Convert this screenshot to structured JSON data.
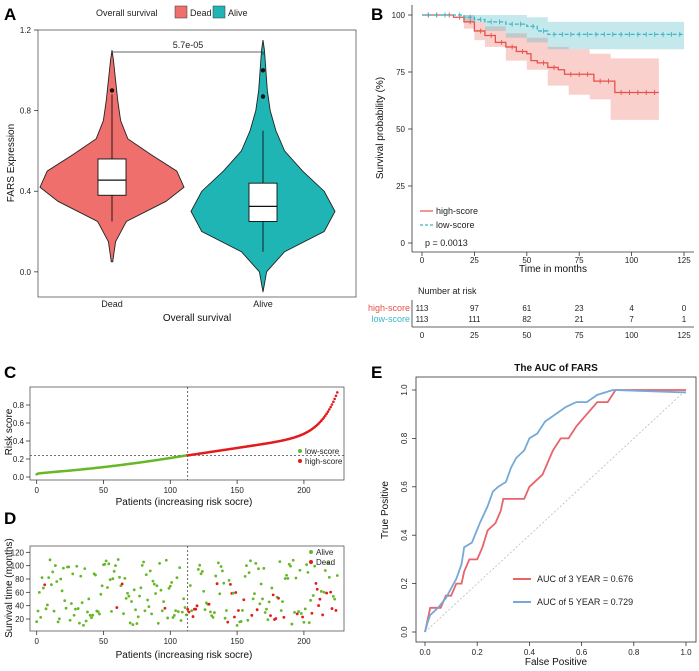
{
  "panels": {
    "A": {
      "label": "A"
    },
    "B": {
      "label": "B"
    },
    "C": {
      "label": "C"
    },
    "D": {
      "label": "D"
    },
    "E": {
      "label": "E"
    }
  },
  "colors": {
    "dead": "#ef6f6c",
    "alive": "#1fb5b5",
    "high": "#e8504a",
    "low": "#3bb6c4",
    "green": "#66b828",
    "red": "#e41a1c",
    "auc3": "#e8636a",
    "auc5": "#74a9d8"
  },
  "chart_data": [
    {
      "id": "A",
      "type": "violin",
      "title": "",
      "legend_title": "Overall survival",
      "legend": [
        "Dead",
        "Alive"
      ],
      "categories": [
        "Dead",
        "Alive"
      ],
      "xlabel": "Overall survival",
      "ylabel": "FARS Expression",
      "ylim": [
        -0.1,
        1.2
      ],
      "yticks": [
        "0.0",
        "0.4",
        "0.8",
        "1.2"
      ],
      "pvalue": "5.7e-05",
      "groups": [
        {
          "name": "Dead",
          "min": 0.05,
          "max": 1.1,
          "q1": 0.38,
          "median": 0.455,
          "q3": 0.56,
          "whisker_low": 0.25,
          "whisker_high": 0.88,
          "outliers": [
            0.9
          ],
          "density": [
            [
              0.05,
              0.01
            ],
            [
              0.15,
              0.05
            ],
            [
              0.25,
              0.2
            ],
            [
              0.35,
              0.75
            ],
            [
              0.42,
              1.0
            ],
            [
              0.5,
              0.9
            ],
            [
              0.58,
              0.55
            ],
            [
              0.66,
              0.22
            ],
            [
              0.75,
              0.12
            ],
            [
              0.85,
              0.08
            ],
            [
              0.95,
              0.05
            ],
            [
              1.05,
              0.02
            ],
            [
              1.1,
              0.0
            ]
          ]
        },
        {
          "name": "Alive",
          "min": -0.1,
          "max": 1.15,
          "q1": 0.25,
          "median": 0.325,
          "q3": 0.44,
          "whisker_low": 0.1,
          "whisker_high": 0.7,
          "outliers": [
            0.87,
            1.0
          ],
          "density": [
            [
              -0.1,
              0.0
            ],
            [
              0.0,
              0.05
            ],
            [
              0.1,
              0.3
            ],
            [
              0.2,
              0.85
            ],
            [
              0.3,
              1.0
            ],
            [
              0.4,
              0.85
            ],
            [
              0.5,
              0.55
            ],
            [
              0.6,
              0.3
            ],
            [
              0.7,
              0.18
            ],
            [
              0.8,
              0.1
            ],
            [
              0.9,
              0.06
            ],
            [
              1.0,
              0.04
            ],
            [
              1.1,
              0.02
            ],
            [
              1.15,
              0.0
            ]
          ]
        }
      ]
    },
    {
      "id": "B",
      "type": "survival",
      "xlabel": "Time in months",
      "ylabel": "Survival probability (%)",
      "xlim": [
        0,
        125
      ],
      "ylim": [
        0,
        100
      ],
      "xticks": [
        "0",
        "25",
        "50",
        "75",
        "100",
        "125"
      ],
      "yticks": [
        "0",
        "25",
        "50",
        "75",
        "100"
      ],
      "pvalue": "p = 0.0013",
      "series": [
        {
          "name": "high-score",
          "curve": [
            [
              0,
              100
            ],
            [
              10,
              100
            ],
            [
              15,
              99
            ],
            [
              20,
              97
            ],
            [
              25,
              93
            ],
            [
              30,
              91
            ],
            [
              35,
              88
            ],
            [
              40,
              86
            ],
            [
              45,
              84
            ],
            [
              50,
              83
            ],
            [
              52,
              80
            ],
            [
              55,
              79
            ],
            [
              60,
              77
            ],
            [
              65,
              76
            ],
            [
              68,
              74
            ],
            [
              80,
              74
            ],
            [
              82,
              71
            ],
            [
              90,
              71
            ],
            [
              92,
              66
            ],
            [
              113,
              66
            ]
          ],
          "lower": [
            [
              0,
              100
            ],
            [
              20,
              94
            ],
            [
              25,
              89
            ],
            [
              30,
              86
            ],
            [
              40,
              80
            ],
            [
              50,
              76
            ],
            [
              60,
              69
            ],
            [
              70,
              65
            ],
            [
              80,
              63
            ],
            [
              90,
              54
            ],
            [
              113,
              53
            ]
          ],
          "upper": [
            [
              0,
              100
            ],
            [
              20,
              100
            ],
            [
              25,
              97
            ],
            [
              30,
              95
            ],
            [
              40,
              92
            ],
            [
              50,
              90
            ],
            [
              60,
              86
            ],
            [
              70,
              85
            ],
            [
              80,
              83
            ],
            [
              90,
              81
            ],
            [
              113,
              81
            ]
          ]
        },
        {
          "name": "low-score",
          "curve": [
            [
              0,
              100
            ],
            [
              15,
              100
            ],
            [
              20,
              99
            ],
            [
              25,
              98
            ],
            [
              30,
              97
            ],
            [
              40,
              96
            ],
            [
              50,
              95
            ],
            [
              55,
              93
            ],
            [
              60,
              91.5
            ],
            [
              125,
              91.5
            ]
          ],
          "lower": [
            [
              0,
              100
            ],
            [
              20,
              97
            ],
            [
              30,
              93
            ],
            [
              40,
              90
            ],
            [
              50,
              88
            ],
            [
              60,
              85
            ],
            [
              125,
              85
            ]
          ],
          "upper": [
            [
              0,
              100
            ],
            [
              30,
              100
            ],
            [
              50,
              99
            ],
            [
              60,
              97
            ],
            [
              125,
              97
            ]
          ]
        }
      ],
      "risk_table": {
        "title": "Number at risk",
        "rows": [
          {
            "name": "high-score",
            "values": [
              "113",
              "97",
              "61",
              "23",
              "4",
              "0"
            ]
          },
          {
            "name": "low-score",
            "values": [
              "113",
              "111",
              "82",
              "21",
              "7",
              "1"
            ]
          }
        ],
        "times": [
          "0",
          "25",
          "50",
          "75",
          "100",
          "125"
        ]
      }
    },
    {
      "id": "C",
      "type": "scatter",
      "xlabel": "Patients (increasing risk socre)",
      "ylabel": "Risk score",
      "ylim": [
        0,
        1.0
      ],
      "xlim": [
        -5,
        230
      ],
      "cutoff_index": 113,
      "cutoff_value": 0.24,
      "xticks": [
        "0",
        "50",
        "100",
        "150",
        "200"
      ],
      "yticks": [
        "0.0",
        "0.2",
        "0.4",
        "0.6",
        "0.8"
      ],
      "legend": [
        "low-score",
        "high-score"
      ]
    },
    {
      "id": "D",
      "type": "scatter",
      "xlabel": "Patients (increasing risk socre)",
      "ylabel": "Survival time (months)",
      "ylim": [
        0,
        125
      ],
      "xlim": [
        -5,
        230
      ],
      "cutoff_index": 113,
      "xticks": [
        "0",
        "50",
        "100",
        "150",
        "200"
      ],
      "yticks": [
        "20",
        "40",
        "60",
        "80",
        "100",
        "120"
      ],
      "legend": [
        "Alive",
        "Dead"
      ]
    },
    {
      "id": "E",
      "type": "line",
      "title": "The AUC of FARS",
      "xlabel": "False Positive",
      "ylabel": "True Positive",
      "xlim": [
        0,
        1
      ],
      "ylim": [
        0,
        1
      ],
      "xticks": [
        "0.0",
        "0.2",
        "0.4",
        "0.6",
        "0.8",
        "1.0"
      ],
      "yticks": [
        "0.0",
        "0.2",
        "0.4",
        "0.6",
        "0.8",
        "1.0"
      ],
      "series": [
        {
          "name": "AUC of 3 YEAR = 0.676",
          "points": [
            [
              0,
              0
            ],
            [
              0.01,
              0.05
            ],
            [
              0.02,
              0.1
            ],
            [
              0.06,
              0.1
            ],
            [
              0.08,
              0.15
            ],
            [
              0.1,
              0.15
            ],
            [
              0.12,
              0.2
            ],
            [
              0.14,
              0.2
            ],
            [
              0.15,
              0.25
            ],
            [
              0.17,
              0.3
            ],
            [
              0.2,
              0.3
            ],
            [
              0.22,
              0.35
            ],
            [
              0.24,
              0.42
            ],
            [
              0.27,
              0.45
            ],
            [
              0.29,
              0.5
            ],
            [
              0.3,
              0.55
            ],
            [
              0.38,
              0.55
            ],
            [
              0.4,
              0.6
            ],
            [
              0.45,
              0.65
            ],
            [
              0.49,
              0.75
            ],
            [
              0.52,
              0.8
            ],
            [
              0.55,
              0.8
            ],
            [
              0.58,
              0.85
            ],
            [
              0.62,
              0.9
            ],
            [
              0.66,
              0.95
            ],
            [
              0.7,
              0.95
            ],
            [
              0.73,
              1.0
            ],
            [
              1.0,
              1.0
            ]
          ]
        },
        {
          "name": "AUC of 5 YEAR = 0.729",
          "points": [
            [
              0,
              0
            ],
            [
              0.01,
              0.04
            ],
            [
              0.02,
              0.07
            ],
            [
              0.05,
              0.1
            ],
            [
              0.08,
              0.14
            ],
            [
              0.1,
              0.18
            ],
            [
              0.12,
              0.22
            ],
            [
              0.14,
              0.28
            ],
            [
              0.15,
              0.35
            ],
            [
              0.18,
              0.37
            ],
            [
              0.21,
              0.45
            ],
            [
              0.24,
              0.52
            ],
            [
              0.26,
              0.58
            ],
            [
              0.28,
              0.6
            ],
            [
              0.31,
              0.62
            ],
            [
              0.33,
              0.68
            ],
            [
              0.35,
              0.72
            ],
            [
              0.38,
              0.75
            ],
            [
              0.4,
              0.8
            ],
            [
              0.43,
              0.82
            ],
            [
              0.46,
              0.87
            ],
            [
              0.5,
              0.9
            ],
            [
              0.54,
              0.93
            ],
            [
              0.58,
              0.95
            ],
            [
              0.62,
              0.95
            ],
            [
              0.66,
              0.98
            ],
            [
              0.72,
              1.0
            ],
            [
              1.0,
              0.99
            ]
          ]
        }
      ]
    }
  ]
}
